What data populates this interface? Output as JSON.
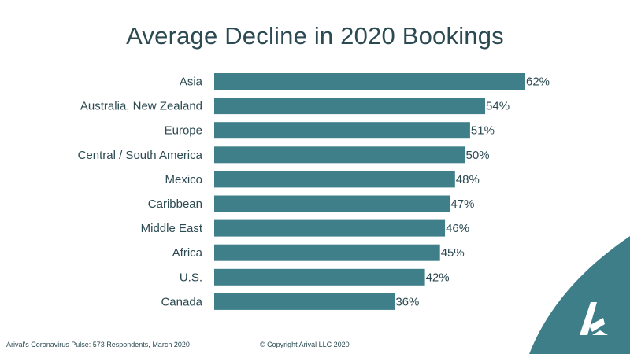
{
  "colors": {
    "bar": "#3e7f8a",
    "text": "#2c4a52",
    "corner": "#3d7e89",
    "logo": "#ffffff"
  },
  "footer": {
    "source": "Arival's Coronavirus Pulse: 573 Respondents, March 2020",
    "copyright": "© Copyright Arival LLC 2020"
  },
  "logo": {
    "icon": "arival-a-logo-icon"
  },
  "chart_data": {
    "type": "bar",
    "orientation": "horizontal",
    "title": "Average Decline in 2020 Bookings",
    "categories": [
      "Asia",
      "Australia, New Zealand",
      "Europe",
      "Central / South America",
      "Mexico",
      "Caribbean",
      "Middle East",
      "Africa",
      "U.S.",
      "Canada"
    ],
    "values": [
      62,
      54,
      51,
      50,
      48,
      47,
      46,
      45,
      42,
      36
    ],
    "value_labels": [
      "62%",
      "54%",
      "51%",
      "50%",
      "48%",
      "47%",
      "46%",
      "45%",
      "42%",
      "36%"
    ],
    "value_unit": "%",
    "xlim": [
      0,
      62
    ],
    "grid": false,
    "legend": "none"
  }
}
